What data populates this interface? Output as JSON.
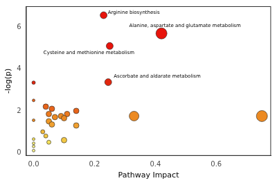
{
  "chart_data": {
    "type": "bubble",
    "x_label": "Pathway Impact",
    "y_label": "-log(p)",
    "xlim": [
      -0.025,
      0.78
    ],
    "ylim": [
      -0.15,
      7.0
    ],
    "xticks": [
      {
        "value": 0,
        "label": "0.0"
      },
      {
        "value": 0.2,
        "label": "0.2"
      },
      {
        "value": 0.4,
        "label": "0.4"
      },
      {
        "value": 0.6,
        "label": "0.6"
      }
    ],
    "yticks": [
      0,
      2,
      4,
      6
    ],
    "grid": false,
    "x": [
      0.23,
      0.42,
      0.25,
      0.245,
      0.0,
      0.0,
      0.0,
      0.0,
      0.0,
      0.0,
      0.0,
      0.04,
      0.06,
      0.05,
      0.07,
      0.05,
      0.06,
      0.09,
      0.11,
      0.14,
      0.14,
      0.33,
      0.75,
      0.1,
      0.04,
      0.05,
      0.1,
      0.03
    ],
    "values": [
      6.57,
      5.7,
      5.1,
      3.37,
      3.35,
      2.5,
      1.55,
      0.65,
      0.45,
      0.3,
      0.1,
      2.2,
      2.1,
      1.85,
      1.7,
      1.5,
      1.35,
      1.75,
      1.85,
      2.0,
      1.3,
      1.75,
      1.75,
      1.65,
      0.8,
      0.5,
      0.6,
      1.0
    ],
    "sizes": [
      5,
      8,
      5,
      5,
      2.5,
      2,
      2,
      2,
      2,
      2,
      2,
      4,
      4,
      4,
      4,
      4,
      4,
      4,
      4,
      4,
      4,
      7,
      8,
      4,
      3,
      3,
      4,
      3
    ],
    "colors": [
      "#e8140c",
      "#e8140c",
      "#e8140c",
      "#e2260e",
      "#e2260e",
      "#e8641a",
      "#ec8a22",
      "#f5e15a",
      "#f7ee7a",
      "#f7f08c",
      "#f7f08c",
      "#e8641a",
      "#e8641a",
      "#ec7a1e",
      "#ec8a22",
      "#ef9a28",
      "#f0a030",
      "#ec8a22",
      "#ec7a1e",
      "#e8641a",
      "#f0a030",
      "#ec8a22",
      "#ec8a22",
      "#ec8a22",
      "#f3c845",
      "#f5e15a",
      "#f3c845",
      "#f0b83a"
    ],
    "annotations": [
      {
        "text": "Arginine biosynthesis",
        "x": 0.23,
        "y": 6.57
      },
      {
        "text": "Alanine, aspartate and glutamate metabolism",
        "x": 0.42,
        "y": 5.7
      },
      {
        "text": "Cysteine and methionine metabolism",
        "x": 0.25,
        "y": 5.1
      },
      {
        "text": "Ascorbate and aldarate metabolism",
        "x": 0.245,
        "y": 3.37
      }
    ]
  }
}
